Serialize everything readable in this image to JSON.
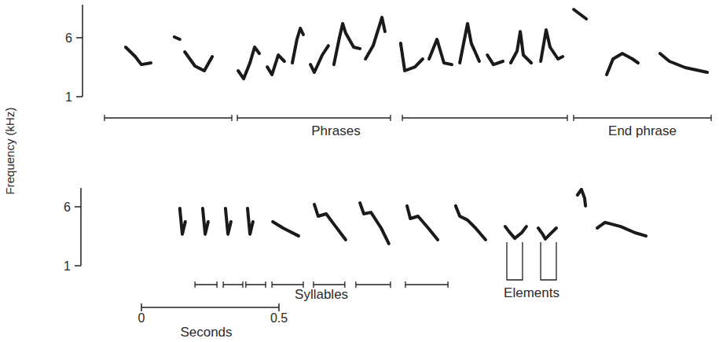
{
  "ylabel": "Frequency (kHz)",
  "scale_bar": {
    "ticks": [
      0,
      0.5
    ],
    "label": "Seconds"
  },
  "chart_data": [
    {
      "type": "spectrogram",
      "xlim": [
        0,
        2.25
      ],
      "ylim": [
        1,
        8.8
      ],
      "yticks": [
        1,
        6
      ],
      "notes": [
        {
          "t": [
            0.114,
            0.149,
            0.171,
            0.206
          ],
          "f": [
            5.2,
            4.4,
            3.73,
            3.87
          ]
        },
        {
          "t": [
            0.291,
            0.311
          ],
          "f": [
            6.07,
            5.87
          ]
        },
        {
          "t": [
            0.329,
            0.366,
            0.4,
            0.429
          ],
          "f": [
            4.8,
            3.6,
            3.2,
            4.4
          ]
        },
        {
          "t": [
            0.523,
            0.543,
            0.566,
            0.583,
            0.6
          ],
          "f": [
            3.2,
            2.53,
            3.87,
            5.2,
            4.67
          ]
        },
        {
          "t": [
            0.629,
            0.646,
            0.669,
            0.691
          ],
          "f": [
            3.53,
            2.87,
            4.53,
            4.0
          ]
        },
        {
          "t": [
            0.72,
            0.737,
            0.749,
            0.76
          ],
          "f": [
            3.87,
            5.87,
            6.8,
            6.27
          ]
        },
        {
          "t": [
            0.786,
            0.8,
            0.829,
            0.851
          ],
          "f": [
            3.73,
            3.07,
            4.53,
            5.33
          ]
        },
        {
          "t": [
            0.871,
            0.891,
            0.903,
            0.914,
            0.943,
            0.966
          ],
          "f": [
            3.73,
            6.0,
            7.2,
            6.4,
            5.2,
            5.07
          ]
        },
        {
          "t": [
            0.986,
            1.014,
            1.046,
            1.057
          ],
          "f": [
            4.2,
            5.33,
            7.73,
            6.53
          ]
        },
        {
          "t": [
            1.114,
            1.129,
            1.166,
            1.194
          ],
          "f": [
            5.53,
            3.2,
            3.53,
            4.2
          ]
        },
        {
          "t": [
            1.217,
            1.246,
            1.271,
            1.3
          ],
          "f": [
            4.2,
            5.87,
            3.87,
            3.73
          ]
        },
        {
          "t": [
            1.329,
            1.357,
            1.371,
            1.4
          ],
          "f": [
            3.87,
            7.2,
            5.53,
            4.0
          ]
        },
        {
          "t": [
            1.429,
            1.451,
            1.486
          ],
          "f": [
            4.53,
            3.73,
            4.0
          ]
        },
        {
          "t": [
            1.514,
            1.537,
            1.549,
            1.56,
            1.589
          ],
          "f": [
            3.87,
            4.87,
            6.53,
            4.53,
            3.87
          ]
        },
        {
          "t": [
            1.623,
            1.643,
            1.657,
            1.686,
            1.703
          ],
          "f": [
            4.0,
            6.67,
            5.2,
            4.2,
            4.4
          ]
        },
        {
          "t": [
            1.743,
            1.766,
            1.789
          ],
          "f": [
            8.4,
            8.0,
            7.6
          ]
        },
        {
          "t": [
            1.863,
            1.886,
            1.92,
            1.957,
            1.977
          ],
          "f": [
            2.87,
            4.2,
            4.67,
            4.2,
            3.87
          ]
        },
        {
          "t": [
            2.057,
            2.091,
            2.149,
            2.229
          ],
          "f": [
            4.67,
            4.0,
            3.47,
            3.07
          ]
        }
      ],
      "groups": [
        {
          "label": "Phrases",
          "brackets": [
            [
              0.037,
              0.5
            ],
            [
              0.52,
              1.077
            ],
            [
              1.12,
              1.72
            ]
          ]
        },
        {
          "label": "End phrase",
          "brackets": [
            [
              1.743,
              2.243
            ]
          ]
        }
      ]
    },
    {
      "type": "spectrogram",
      "xlim": [
        0,
        2.25
      ],
      "ylim": [
        1,
        7.6
      ],
      "yticks": [
        1,
        6
      ],
      "notes": [
        {
          "t": [
            0.311,
            0.32,
            0.331
          ],
          "f": [
            5.87,
            3.67,
            4.73
          ]
        },
        {
          "t": [
            0.394,
            0.403,
            0.414
          ],
          "f": [
            5.87,
            3.67,
            4.73
          ]
        },
        {
          "t": [
            0.477,
            0.486,
            0.497
          ],
          "f": [
            5.87,
            3.67,
            4.73
          ]
        },
        {
          "t": [
            0.557,
            0.566,
            0.577
          ],
          "f": [
            5.87,
            3.67,
            4.73
          ]
        },
        {
          "t": [
            0.649,
            0.686,
            0.743
          ],
          "f": [
            4.73,
            4.2,
            3.53
          ]
        },
        {
          "t": [
            0.8,
            0.814,
            0.843,
            0.871,
            0.914
          ],
          "f": [
            6.2,
            5.2,
            5.4,
            4.53,
            3.2
          ]
        },
        {
          "t": [
            0.966,
            0.98,
            1.006,
            1.043,
            1.071
          ],
          "f": [
            6.33,
            5.4,
            5.53,
            4.2,
            2.87
          ]
        },
        {
          "t": [
            1.137,
            1.149,
            1.177,
            1.214,
            1.249
          ],
          "f": [
            6.07,
            5.0,
            5.2,
            4.2,
            3.2
          ]
        },
        {
          "t": [
            1.314,
            1.329,
            1.357,
            1.386,
            1.423
          ],
          "f": [
            6.07,
            5.2,
            4.87,
            4.2,
            3.2
          ]
        },
        {
          "t": [
            1.494,
            1.509,
            1.529,
            1.554,
            1.571
          ],
          "f": [
            4.33,
            3.87,
            3.33,
            3.8,
            4.33
          ]
        },
        {
          "t": [
            1.614,
            1.629,
            1.64,
            1.657,
            1.68
          ],
          "f": [
            4.2,
            3.73,
            3.27,
            3.67,
            4.2
          ]
        },
        {
          "t": [
            1.757,
            1.771,
            1.783,
            1.786
          ],
          "f": [
            7.0,
            7.47,
            6.73,
            6.07
          ]
        },
        {
          "t": [
            1.829,
            1.857,
            1.914,
            1.966,
            2.006
          ],
          "f": [
            4.2,
            4.67,
            4.33,
            3.8,
            3.53
          ]
        }
      ],
      "groups": [
        {
          "label": "Syllables",
          "brackets": [
            [
              0.366,
              0.446
            ],
            [
              0.469,
              0.54
            ],
            [
              0.551,
              0.623
            ],
            [
              0.646,
              0.76
            ],
            [
              0.797,
              0.911
            ],
            [
              0.951,
              1.077
            ],
            [
              1.131,
              1.286
            ]
          ]
        }
      ],
      "elements": {
        "label": "Elements",
        "pairs": [
          [
            1.5,
            1.557
          ],
          [
            1.623,
            1.68
          ]
        ]
      }
    }
  ]
}
